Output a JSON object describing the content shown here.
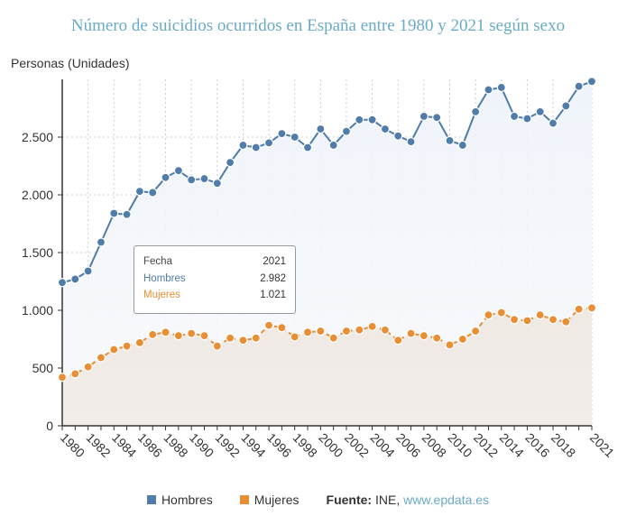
{
  "title": "Número de suicidios ocurridos en España entre 1980 y 2021 según sexo",
  "colors": {
    "hombres": "#4f7ca8",
    "mujeres": "#e88e34",
    "title": "#6aaac9"
  },
  "tooltip": {
    "header_label": "Fecha",
    "header_value": "2021",
    "rows": [
      {
        "label": "Hombres",
        "value": "2.982"
      },
      {
        "label": "Mujeres",
        "value": "1.021"
      }
    ]
  },
  "legend": {
    "items": [
      {
        "label": "Hombres"
      },
      {
        "label": "Mujeres"
      }
    ],
    "source_label": "Fuente:",
    "source_text": "INE,",
    "source_link": "www.epdata.es"
  },
  "chart_data": {
    "type": "line",
    "ylabel": "Personas (Unidades)",
    "xlabel": "",
    "x": [
      1980,
      1981,
      1982,
      1983,
      1984,
      1985,
      1986,
      1987,
      1988,
      1989,
      1990,
      1991,
      1992,
      1993,
      1994,
      1995,
      1996,
      1997,
      1998,
      1999,
      2000,
      2001,
      2002,
      2003,
      2004,
      2005,
      2006,
      2007,
      2008,
      2009,
      2010,
      2011,
      2012,
      2013,
      2014,
      2015,
      2016,
      2017,
      2018,
      2019,
      2020,
      2021
    ],
    "x_tick_labels": [
      "1980",
      "1982",
      "1984",
      "1986",
      "1988",
      "1990",
      "1992",
      "1994",
      "1996",
      "1998",
      "2000",
      "2002",
      "2004",
      "2006",
      "2008",
      "2010",
      "2012",
      "2014",
      "2016",
      "2018",
      "2021"
    ],
    "y_ticks": [
      0,
      500,
      1000,
      1500,
      2000,
      2500
    ],
    "y_tick_labels": [
      "0",
      "500",
      "1.000",
      "1.500",
      "2.000",
      "2.500"
    ],
    "ylim": [
      0,
      3000
    ],
    "grid": true,
    "legend_position": "bottom",
    "series": [
      {
        "name": "Hombres",
        "values": [
          1240,
          1270,
          1340,
          1590,
          1840,
          1830,
          2030,
          2020,
          2150,
          2210,
          2130,
          2140,
          2100,
          2280,
          2430,
          2410,
          2450,
          2530,
          2500,
          2410,
          2570,
          2430,
          2550,
          2650,
          2650,
          2570,
          2510,
          2460,
          2680,
          2670,
          2470,
          2430,
          2720,
          2910,
          2930,
          2680,
          2660,
          2720,
          2620,
          2770,
          2940,
          2982
        ]
      },
      {
        "name": "Mujeres",
        "values": [
          420,
          450,
          510,
          590,
          660,
          690,
          720,
          790,
          810,
          780,
          800,
          780,
          690,
          760,
          740,
          760,
          870,
          850,
          770,
          810,
          820,
          760,
          820,
          830,
          860,
          830,
          740,
          800,
          780,
          760,
          700,
          750,
          820,
          960,
          980,
          920,
          910,
          960,
          920,
          900,
          1010,
          1021
        ]
      }
    ]
  }
}
